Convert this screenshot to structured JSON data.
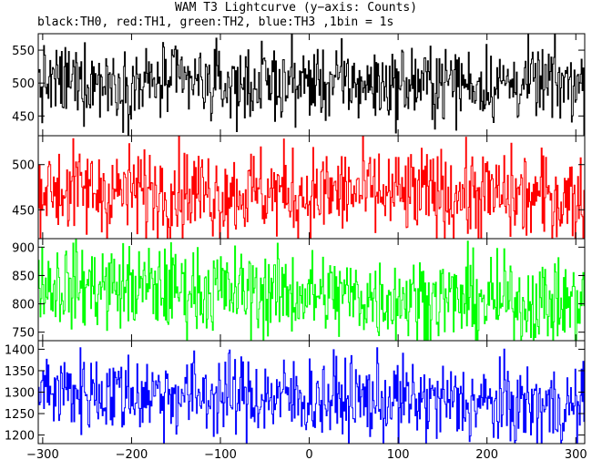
{
  "title": "WAM T3 Lightcurve (y−axis: Counts)",
  "subtitle": "black:TH0, red:TH1, green:TH2, blue:TH3 ,1bin = 1s",
  "chart_data": {
    "type": "line",
    "bin_seconds": 1,
    "x_range": [
      -305,
      310
    ],
    "x_ticks": [
      -300,
      -200,
      -100,
      0,
      100,
      200,
      300
    ],
    "x_tick_labels": [
      "−300",
      "−200",
      "−100",
      "0",
      "100",
      "200",
      "300"
    ],
    "panels": [
      {
        "name": "TH0",
        "color": "#000000",
        "ylim": [
          420,
          575
        ],
        "yticks": [
          450,
          500,
          550
        ],
        "mean_start": 500,
        "mean_end": 500,
        "noise": 28,
        "points": [
          [
            -300,
            498
          ],
          [
            -250,
            505
          ],
          [
            -200,
            497
          ],
          [
            -150,
            503
          ],
          [
            -100,
            496
          ],
          [
            -50,
            500
          ],
          [
            0,
            501
          ],
          [
            50,
            499
          ],
          [
            100,
            497
          ],
          [
            150,
            502
          ],
          [
            200,
            498
          ],
          [
            250,
            500
          ],
          [
            300,
            499
          ]
        ]
      },
      {
        "name": "TH1",
        "color": "#ff0000",
        "ylim": [
          418,
          532
        ],
        "yticks": [
          450,
          500
        ],
        "mean_start": 472,
        "mean_end": 465,
        "noise": 25,
        "points": [
          [
            -300,
            474
          ],
          [
            -250,
            471
          ],
          [
            -200,
            470
          ],
          [
            -150,
            472
          ],
          [
            -100,
            468
          ],
          [
            -50,
            470
          ],
          [
            0,
            467
          ],
          [
            50,
            470
          ],
          [
            100,
            466
          ],
          [
            150,
            468
          ],
          [
            200,
            466
          ],
          [
            250,
            464
          ],
          [
            300,
            463
          ]
        ]
      },
      {
        "name": "TH2",
        "color": "#00ff00",
        "ylim": [
          735,
          915
        ],
        "yticks": [
          750,
          800,
          850,
          900
        ],
        "mean_start": 835,
        "mean_end": 800,
        "noise": 38,
        "points": [
          [
            -300,
            835
          ],
          [
            -250,
            832
          ],
          [
            -200,
            829
          ],
          [
            -150,
            826
          ],
          [
            -100,
            823
          ],
          [
            -50,
            820
          ],
          [
            0,
            817
          ],
          [
            50,
            813
          ],
          [
            100,
            810
          ],
          [
            150,
            808
          ],
          [
            200,
            805
          ],
          [
            250,
            802
          ],
          [
            300,
            800
          ]
        ]
      },
      {
        "name": "TH3",
        "color": "#0000ff",
        "ylim": [
          1180,
          1420
        ],
        "yticks": [
          1200,
          1250,
          1300,
          1350,
          1400
        ],
        "mean_start": 1305,
        "mean_end": 1265,
        "noise": 48,
        "points": [
          [
            -300,
            1305
          ],
          [
            -250,
            1301
          ],
          [
            -200,
            1298
          ],
          [
            -150,
            1295
          ],
          [
            -100,
            1292
          ],
          [
            -50,
            1289
          ],
          [
            0,
            1286
          ],
          [
            50,
            1283
          ],
          [
            100,
            1280
          ],
          [
            150,
            1276
          ],
          [
            200,
            1272
          ],
          [
            250,
            1268
          ],
          [
            300,
            1265
          ]
        ]
      }
    ]
  }
}
